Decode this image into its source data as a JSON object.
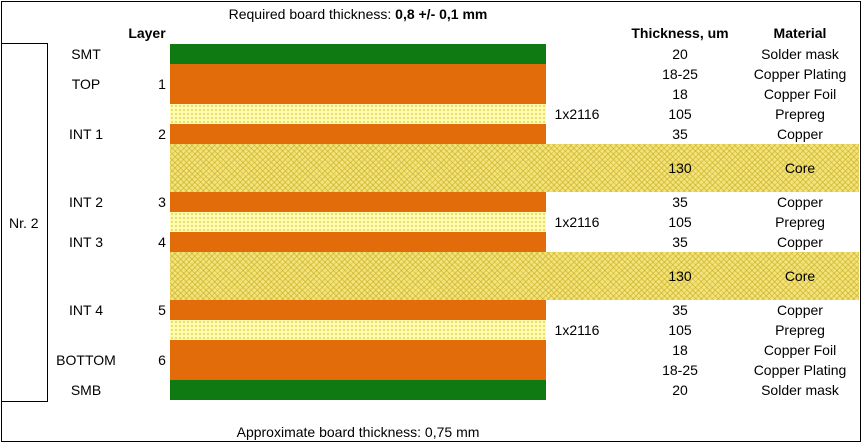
{
  "header": {
    "required_prefix": "Required board thickness: ",
    "required_value": "0,8 +/- 0,1 mm",
    "col_layer": "Layer",
    "col_thickness": "Thickness, um",
    "col_material": "Material"
  },
  "footer": {
    "approx": "Approximate board thickness: 0,75 mm"
  },
  "group_label": "Nr. 2",
  "colors": {
    "solder_mask": "#0f7a12",
    "copper": "#e36c0a",
    "prepreg": "#fffcb0",
    "core": "#f4e27a"
  },
  "rows": [
    {
      "name": "SMT",
      "num": "",
      "spec": "",
      "thickness": "20",
      "material": "Solder mask"
    },
    {
      "name": "TOP",
      "num": "1",
      "spec": "",
      "thickness": "18-25",
      "material": "Copper Plating"
    },
    {
      "name": "",
      "num": "",
      "spec": "",
      "thickness": "18",
      "material": "Copper Foil"
    },
    {
      "name": "",
      "num": "",
      "spec": "1x2116",
      "thickness": "105",
      "material": "Prepreg"
    },
    {
      "name": "INT 1",
      "num": "2",
      "spec": "",
      "thickness": "35",
      "material": "Copper"
    },
    {
      "name": "",
      "num": "",
      "spec": "",
      "thickness": "130",
      "material": "Core"
    },
    {
      "name": "INT 2",
      "num": "3",
      "spec": "",
      "thickness": "35",
      "material": "Copper"
    },
    {
      "name": "",
      "num": "",
      "spec": "1x2116",
      "thickness": "105",
      "material": "Prepreg"
    },
    {
      "name": "INT 3",
      "num": "4",
      "spec": "",
      "thickness": "35",
      "material": "Copper"
    },
    {
      "name": "",
      "num": "",
      "spec": "",
      "thickness": "130",
      "material": "Core"
    },
    {
      "name": "INT 4",
      "num": "5",
      "spec": "",
      "thickness": "35",
      "material": "Copper"
    },
    {
      "name": "",
      "num": "",
      "spec": "1x2116",
      "thickness": "105",
      "material": "Prepreg"
    },
    {
      "name": "BOTTOM",
      "num": "6",
      "spec": "",
      "thickness": "18",
      "material": "Copper Foil"
    },
    {
      "name": "",
      "num": "",
      "spec": "",
      "thickness": "18-25",
      "material": "Copper Plating"
    },
    {
      "name": "SMB",
      "num": "",
      "spec": "",
      "thickness": "20",
      "material": "Solder mask"
    }
  ]
}
